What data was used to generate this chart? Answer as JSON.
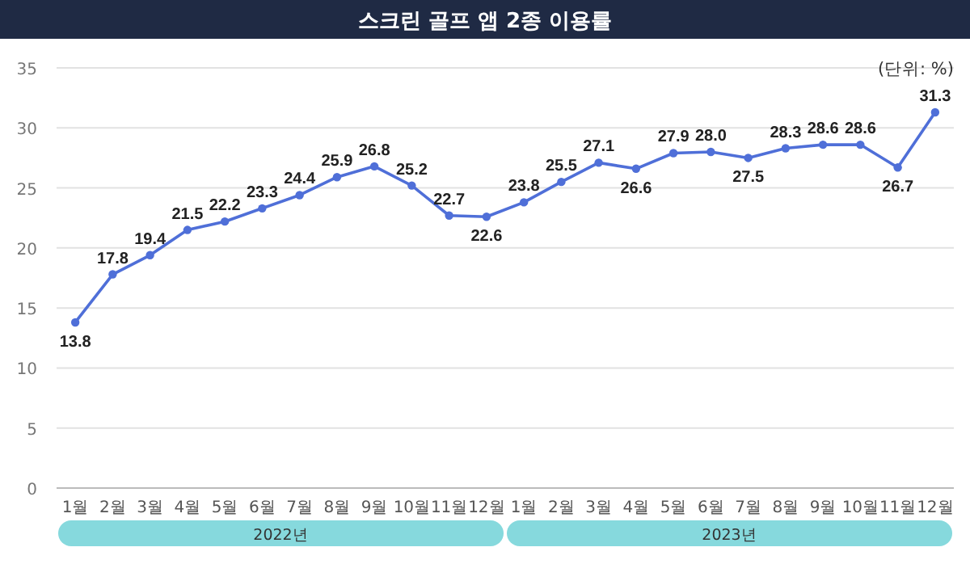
{
  "chart_data": {
    "type": "line",
    "title": "스크린 골프 앱 2종 이용률",
    "categories": [
      "1월",
      "2월",
      "3월",
      "4월",
      "5월",
      "6월",
      "7월",
      "8월",
      "9월",
      "10월",
      "11월",
      "12월",
      "1월",
      "2월",
      "3월",
      "4월",
      "5월",
      "6월",
      "7월",
      "8월",
      "9월",
      "10월",
      "11월",
      "12월"
    ],
    "series": [
      {
        "color": "#4f6fd8",
        "values": [
          13.8,
          17.8,
          19.4,
          21.5,
          22.2,
          23.3,
          24.4,
          25.9,
          26.8,
          25.2,
          22.7,
          22.6,
          23.8,
          25.5,
          27.1,
          26.6,
          27.9,
          28.0,
          27.5,
          28.3,
          28.6,
          28.6,
          26.7,
          31.3
        ],
        "value_labels": [
          "13.8",
          "17.8",
          "19.4",
          "21.5",
          "22.2",
          "23.3",
          "24.4",
          "25.9",
          "26.8",
          "25.2",
          "22.7",
          "22.6",
          "23.8",
          "25.5",
          "27.1",
          "26.6",
          "27.9",
          "28.0",
          "27.5",
          "28.3",
          "28.6",
          "28.6",
          "26.7",
          "31.3"
        ]
      }
    ],
    "ylim": [
      0,
      35
    ],
    "yticks": [
      0,
      5,
      10,
      15,
      20,
      25,
      30,
      35
    ],
    "grid": "y",
    "marker": "circle",
    "annotations": [
      "(단위: %)",
      "2022년",
      "2023년"
    ]
  }
}
